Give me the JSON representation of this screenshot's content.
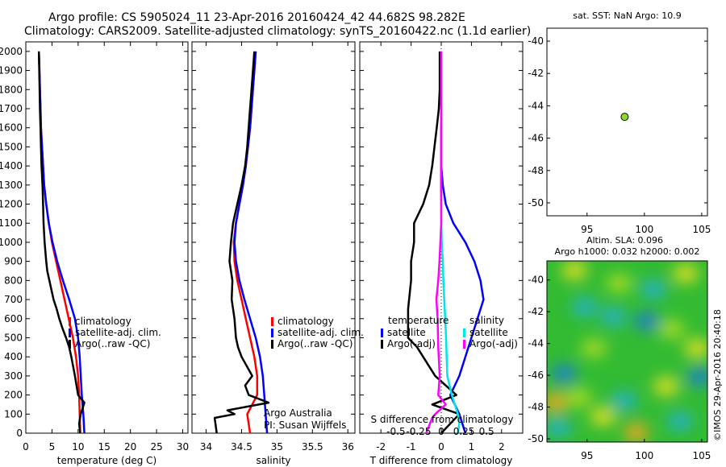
{
  "header": {
    "title_line1": "Argo profile: CS 5905024_11 23-Apr-2016 20160424_42 44.682S 98.282E",
    "title_line2": "Climatology: CARS2009. Satellite-adjusted climatology: synTS_20160422.nc (1.1d earlier)"
  },
  "colors": {
    "climatology": "#ff0000",
    "satellite_adj": "#0000ff",
    "argo": "#000000",
    "sal_satellite": "#00e5e5",
    "sal_argo": "#ff00ff",
    "marker": "#88dd22"
  },
  "chart_data": [
    {
      "type": "line",
      "id": "temperature_profile",
      "xlabel": "temperature (deg C)",
      "xlim": [
        0,
        31
      ],
      "ylim": [
        2050,
        0
      ],
      "xticks": [
        0,
        5,
        10,
        15,
        20,
        25,
        30
      ],
      "yticks": [
        0,
        100,
        200,
        300,
        400,
        500,
        600,
        700,
        800,
        900,
        1000,
        1100,
        1200,
        1300,
        1400,
        1500,
        1600,
        1700,
        1800,
        1900,
        2000
      ],
      "legend": [
        "climatology",
        "satellite-adj. clim.",
        "Argo(..raw -QC)"
      ],
      "legend_placement": "lower-right",
      "series": [
        {
          "name": "climatology",
          "color": "#ff0000",
          "x": [
            10.4,
            10.3,
            10.2,
            10.0,
            9.6,
            9.0,
            8.2,
            7.4,
            6.6,
            5.8,
            5.0,
            4.4,
            3.9,
            3.5,
            3.3,
            3.1,
            2.9,
            2.8,
            2.7,
            2.6,
            2.5
          ],
          "y": [
            0,
            100,
            200,
            300,
            400,
            500,
            600,
            700,
            800,
            900,
            1000,
            1100,
            1200,
            1300,
            1400,
            1500,
            1600,
            1700,
            1800,
            1900,
            2000
          ]
        },
        {
          "name": "satellite-adj. clim.",
          "color": "#0000ff",
          "x": [
            11.2,
            11.0,
            10.7,
            10.5,
            10.3,
            10.0,
            9.4,
            8.3,
            7.1,
            6.0,
            5.1,
            4.4,
            3.9,
            3.5,
            3.3,
            3.1,
            2.9,
            2.8,
            2.7,
            2.6,
            2.5
          ],
          "y": [
            0,
            100,
            200,
            300,
            400,
            500,
            600,
            700,
            800,
            900,
            1000,
            1100,
            1200,
            1300,
            1400,
            1500,
            1600,
            1700,
            1800,
            1900,
            2000
          ]
        },
        {
          "name": "Argo(..raw -QC)",
          "color": "#000000",
          "x": [
            10.4,
            10.2,
            10.5,
            11.2,
            10.0,
            9.4,
            8.7,
            8.3,
            7.7,
            7.0,
            6.4,
            5.9,
            5.3,
            4.9,
            4.5,
            4.1,
            3.9,
            3.6,
            3.4,
            3.3,
            3.2,
            3.0,
            2.9,
            2.8,
            2.7,
            2.6,
            2.5
          ],
          "y": [
            0,
            50,
            100,
            160,
            200,
            300,
            400,
            450,
            500,
            550,
            600,
            650,
            700,
            750,
            800,
            850,
            900,
            1000,
            1100,
            1200,
            1300,
            1400,
            1500,
            1600,
            1700,
            1850,
            2000
          ]
        }
      ]
    },
    {
      "type": "line",
      "id": "salinity_profile",
      "xlabel": "salinity",
      "xlim": [
        33.8,
        36.1
      ],
      "ylim": [
        2050,
        0
      ],
      "xticks": [
        34,
        34.5,
        35,
        35.5,
        36
      ],
      "legend": [
        "climatology",
        "satellite-adj. clim.",
        "Argo(..raw -QC)"
      ],
      "legend_placement": "lower-right",
      "annotation_line1": "Argo Australia",
      "annotation_line2": "PI: Susan Wijffels",
      "series": [
        {
          "name": "climatology",
          "color": "#ff0000",
          "x": [
            34.62,
            34.58,
            34.72,
            34.72,
            34.68,
            34.62,
            34.56,
            34.5,
            34.44,
            34.4,
            34.39,
            34.42,
            34.47,
            34.52,
            34.56,
            34.59,
            34.62,
            34.64,
            34.66,
            34.68,
            34.7
          ],
          "y": [
            0,
            100,
            200,
            300,
            400,
            500,
            600,
            700,
            800,
            900,
            1000,
            1100,
            1200,
            1300,
            1400,
            1500,
            1600,
            1700,
            1800,
            1900,
            2000
          ]
        },
        {
          "name": "satellite-adj. clim.",
          "color": "#0000ff",
          "x": [
            34.86,
            34.84,
            34.82,
            34.8,
            34.76,
            34.7,
            34.62,
            34.54,
            34.47,
            34.42,
            34.4,
            34.42,
            34.47,
            34.52,
            34.56,
            34.59,
            34.62,
            34.64,
            34.66,
            34.68,
            34.7
          ],
          "y": [
            0,
            100,
            200,
            300,
            400,
            500,
            600,
            700,
            800,
            900,
            1000,
            1100,
            1200,
            1300,
            1400,
            1500,
            1600,
            1700,
            1800,
            1900,
            2000
          ]
        },
        {
          "name": "Argo(..raw -QC)",
          "color": "#000000",
          "x": [
            34.15,
            34.12,
            34.4,
            34.3,
            34.88,
            34.6,
            34.55,
            34.65,
            34.5,
            34.45,
            34.42,
            34.4,
            34.36,
            34.37,
            34.33,
            34.35,
            34.38,
            34.44,
            34.5,
            34.55,
            34.58,
            34.62,
            34.65,
            34.68
          ],
          "y": [
            0,
            80,
            100,
            120,
            160,
            200,
            250,
            300,
            400,
            450,
            500,
            600,
            700,
            800,
            900,
            1000,
            1100,
            1200,
            1300,
            1400,
            1500,
            1700,
            1850,
            2000
          ]
        }
      ]
    },
    {
      "type": "line",
      "id": "difference_profile",
      "xlabel": "T difference from climatology",
      "xlabel_top": "S difference from climatology",
      "xlim": [
        -2.7,
        2.7
      ],
      "ylim": [
        2050,
        0
      ],
      "xticks_t": [
        -2,
        -1,
        0,
        1,
        2
      ],
      "xticks_s_labels": [
        "-0.5",
        "-0.25",
        "0",
        "0.25",
        "0.5"
      ],
      "xticks_s_values": [
        -0.5,
        -0.25,
        0,
        0.25,
        0.5
      ],
      "legend_temperature_title": "temperature",
      "legend_salinity_title": "salinity",
      "legend_temperature": [
        "satellite",
        "Argo(-adj)"
      ],
      "legend_salinity": [
        "satellite",
        "Argo(-adj)"
      ],
      "legend_placement": "lower-center",
      "series": [
        {
          "name": "temperature satellite",
          "color": "#0000ff",
          "x": [
            0.8,
            0.6,
            0.3,
            0.6,
            0.8,
            1.0,
            1.2,
            1.4,
            1.3,
            1.1,
            0.8,
            0.4,
            0.15,
            0.05,
            0.0,
            0.0,
            0.0,
            0.0,
            0.0,
            0.0,
            0.0
          ],
          "y": [
            0,
            100,
            200,
            300,
            400,
            500,
            600,
            700,
            800,
            900,
            1000,
            1100,
            1200,
            1300,
            1400,
            1500,
            1600,
            1700,
            1800,
            1900,
            2000
          ]
        },
        {
          "name": "temperature Argo(-adj)",
          "color": "#000000",
          "x": [
            0.0,
            0.6,
            -0.3,
            0.5,
            -0.2,
            -0.8,
            -1.1,
            -1.1,
            -1.0,
            -1.0,
            -0.9,
            -0.9,
            -0.6,
            -0.4,
            -0.3,
            -0.15,
            -0.08,
            -0.05,
            -0.05,
            -0.05
          ],
          "y": [
            0,
            100,
            150,
            200,
            300,
            450,
            500,
            650,
            800,
            900,
            1000,
            1100,
            1200,
            1300,
            1400,
            1600,
            1700,
            1800,
            1900,
            2000
          ]
        },
        {
          "name": "salinity satellite",
          "color": "#00e5e5",
          "x": [
            0.55,
            0.6,
            0.55,
            0.35,
            0.2,
            0.18,
            0.16,
            0.13,
            0.1,
            0.07,
            0.05,
            0.02,
            0.0,
            -0.01,
            -0.01,
            -0.01,
            0.0,
            0.0,
            0.0,
            0.0
          ],
          "y": [
            0,
            50,
            100,
            200,
            300,
            400,
            500,
            600,
            700,
            800,
            900,
            1000,
            1100,
            1300,
            1500,
            1600,
            1700,
            1800,
            1900,
            2000
          ]
        },
        {
          "name": "salinity Argo(-adj)",
          "color": "#ff00ff",
          "x": [
            -0.5,
            -0.3,
            -0.2,
            0.15,
            -0.1,
            -0.05,
            -0.1,
            -0.12,
            -0.16,
            -0.1,
            -0.06,
            -0.03,
            0.0,
            0.0,
            0.0
          ],
          "y": [
            0,
            80,
            100,
            150,
            200,
            300,
            450,
            600,
            700,
            800,
            900,
            1000,
            1100,
            1500,
            2000
          ]
        }
      ]
    },
    {
      "type": "scatter",
      "id": "location_map",
      "title": "sat. SST: NaN Argo: 10.9",
      "xlim": [
        91.5,
        105.5
      ],
      "ylim": [
        -50.8,
        -39.2
      ],
      "xticks": [
        95,
        100,
        105
      ],
      "yticks": [
        -40,
        -42,
        -44,
        -46,
        -48,
        -50
      ],
      "points": [
        {
          "x": 98.282,
          "y": -44.682
        }
      ]
    },
    {
      "type": "heatmap",
      "id": "altimetry_map",
      "title_line1": "Altim. SLA: 0.096",
      "title_line2": "Argo h1000: 0.032 h2000: 0.002",
      "xlim": [
        91.5,
        105.5
      ],
      "ylim": [
        -50.2,
        -38.8
      ],
      "xticks": [
        95,
        100,
        105
      ],
      "yticks": [
        -40,
        -42,
        -44,
        -46,
        -48,
        -50
      ],
      "color_levels": [
        "#1f7fcf",
        "#22b0cc",
        "#33cc88",
        "#33bb33",
        "#66cc33",
        "#aadd22",
        "#e6e022",
        "#f5a623"
      ],
      "anomaly_spots": [
        {
          "x": 100.2,
          "y": -42.6,
          "level": 0
        },
        {
          "x": 93.0,
          "y": -45.9,
          "level": 0
        },
        {
          "x": 104.8,
          "y": -46.1,
          "level": 0
        },
        {
          "x": 92.5,
          "y": -49.3,
          "level": 1
        },
        {
          "x": 100.8,
          "y": -40.6,
          "level": 1
        },
        {
          "x": 97.3,
          "y": -42.3,
          "level": 1
        },
        {
          "x": 98.2,
          "y": -47.6,
          "level": 1
        },
        {
          "x": 94.8,
          "y": -41.7,
          "level": 1
        },
        {
          "x": 103.1,
          "y": -48.9,
          "level": 1
        },
        {
          "x": 92.2,
          "y": -47.7,
          "level": 7
        },
        {
          "x": 99.3,
          "y": -49.6,
          "level": 7
        },
        {
          "x": 93.9,
          "y": -39.4,
          "level": 6
        },
        {
          "x": 96.4,
          "y": -48.6,
          "level": 6
        },
        {
          "x": 103.6,
          "y": -39.6,
          "level": 6
        },
        {
          "x": 101.9,
          "y": -46.7,
          "level": 6
        },
        {
          "x": 104.6,
          "y": -44.3,
          "level": 6
        },
        {
          "x": 97.8,
          "y": -40.2,
          "level": 5
        },
        {
          "x": 95.6,
          "y": -44.3,
          "level": 5
        },
        {
          "x": 102.4,
          "y": -43.1,
          "level": 5
        },
        {
          "x": 94.3,
          "y": -47.4,
          "level": 5
        }
      ],
      "side_label": "©IMOS 29-Apr-2016 20:40:18"
    }
  ]
}
